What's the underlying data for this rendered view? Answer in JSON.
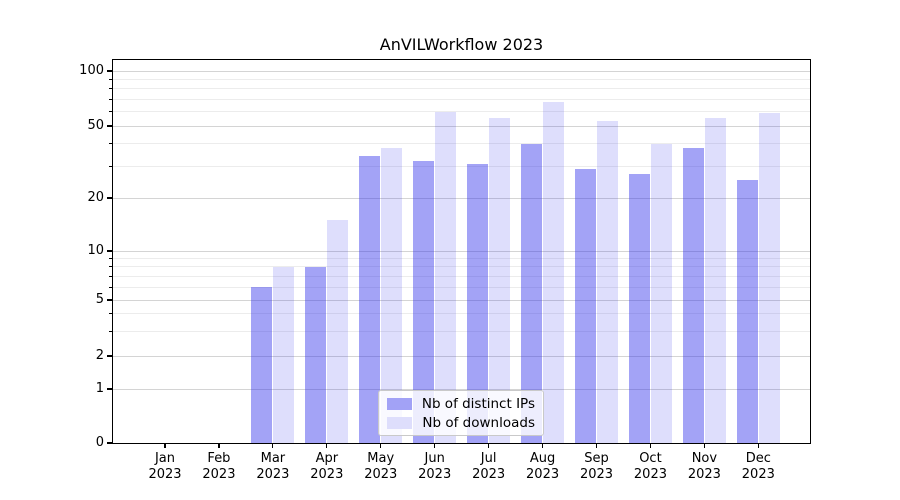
{
  "figure": {
    "title": "AnVILWorkflow 2023"
  },
  "chart_data": {
    "type": "bar",
    "title": "AnVILWorkflow 2023",
    "xlabel": "",
    "ylabel": "",
    "yscale": "symlog",
    "ylim": [
      0,
      115
    ],
    "grid": true,
    "legend_position": "lower center (inside axes)",
    "categories": [
      "Jan 2023",
      "Feb 2023",
      "Mar 2023",
      "Apr 2023",
      "May 2023",
      "Jun 2023",
      "Jul 2023",
      "Aug 2023",
      "Sep 2023",
      "Oct 2023",
      "Nov 2023",
      "Dec 2023"
    ],
    "y_major_ticks": [
      0,
      1,
      2,
      5,
      10,
      20,
      50,
      100
    ],
    "y_minor_ticks": [
      3,
      4,
      6,
      7,
      8,
      9,
      30,
      40,
      60,
      70,
      80,
      90
    ],
    "series": [
      {
        "name": "Nb of distinct IPs",
        "color": "#a2a2f6",
        "base_color": "#2d2deb",
        "alpha": 0.44,
        "values": [
          0,
          0,
          6,
          8,
          34,
          32,
          31,
          40,
          29,
          27,
          38,
          25
        ]
      },
      {
        "name": "Nb of downloads",
        "color": "#dedefc",
        "base_color": "#2d2deb",
        "alpha": 0.155,
        "values": [
          0,
          0,
          8,
          15,
          38,
          60,
          55,
          68,
          53,
          40,
          55,
          59
        ]
      }
    ],
    "colors": {
      "grid_major": "#d4d4d4",
      "grid_minor": "#ececec",
      "spine": "#000000",
      "background": "#ffffff"
    }
  }
}
